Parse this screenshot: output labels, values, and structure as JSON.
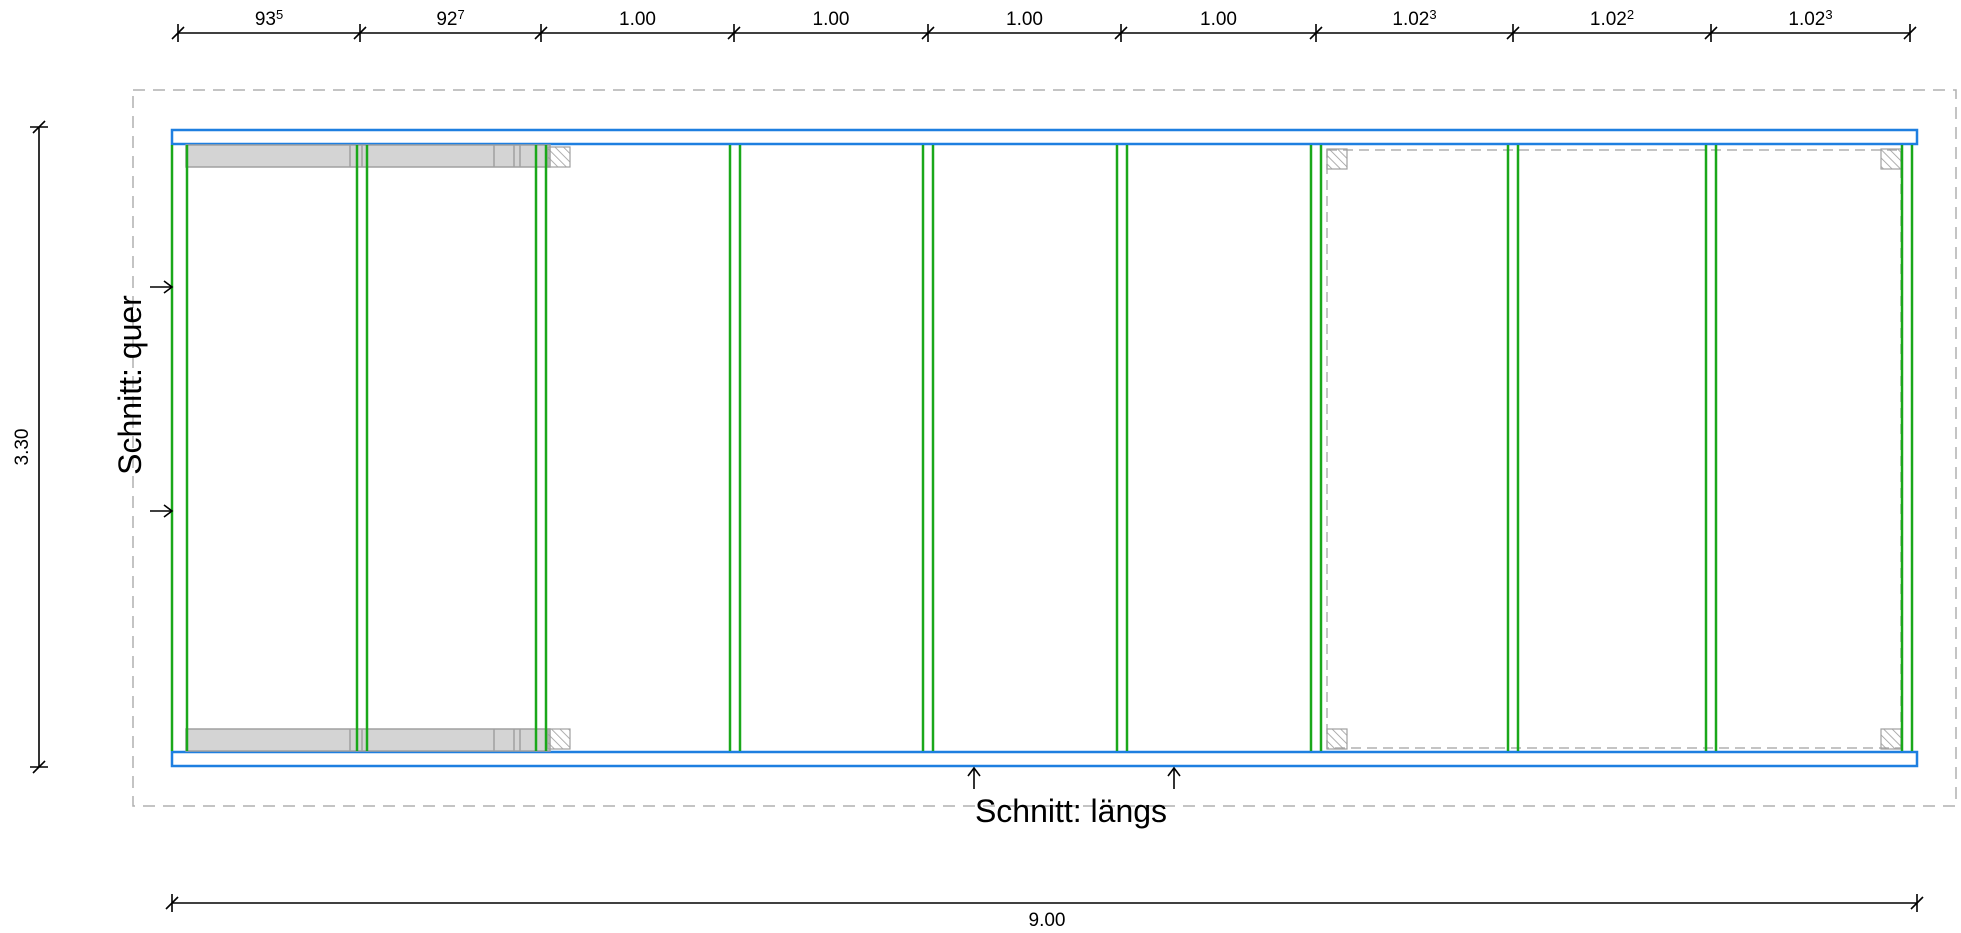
{
  "top_dimensions": [
    {
      "main": "93",
      "sup": "5"
    },
    {
      "main": "92",
      "sup": "7"
    },
    {
      "main": "1.00",
      "sup": ""
    },
    {
      "main": "1.00",
      "sup": ""
    },
    {
      "main": "1.00",
      "sup": ""
    },
    {
      "main": "1.00",
      "sup": ""
    },
    {
      "main": "1.02",
      "sup": "3"
    },
    {
      "main": "1.02",
      "sup": "2"
    },
    {
      "main": "1.02",
      "sup": "3"
    }
  ],
  "left_dimension": "3.30",
  "bottom_dimension": "9.00",
  "section_cross_label": "Schnitt:  quer",
  "section_long_label": "Schnitt:  längs",
  "colors": {
    "frame": "#1e7fe0",
    "joist": "#1aa81a",
    "panel": "#d4d4d4",
    "outline": "#a8a8a8",
    "dim": "#000000"
  }
}
